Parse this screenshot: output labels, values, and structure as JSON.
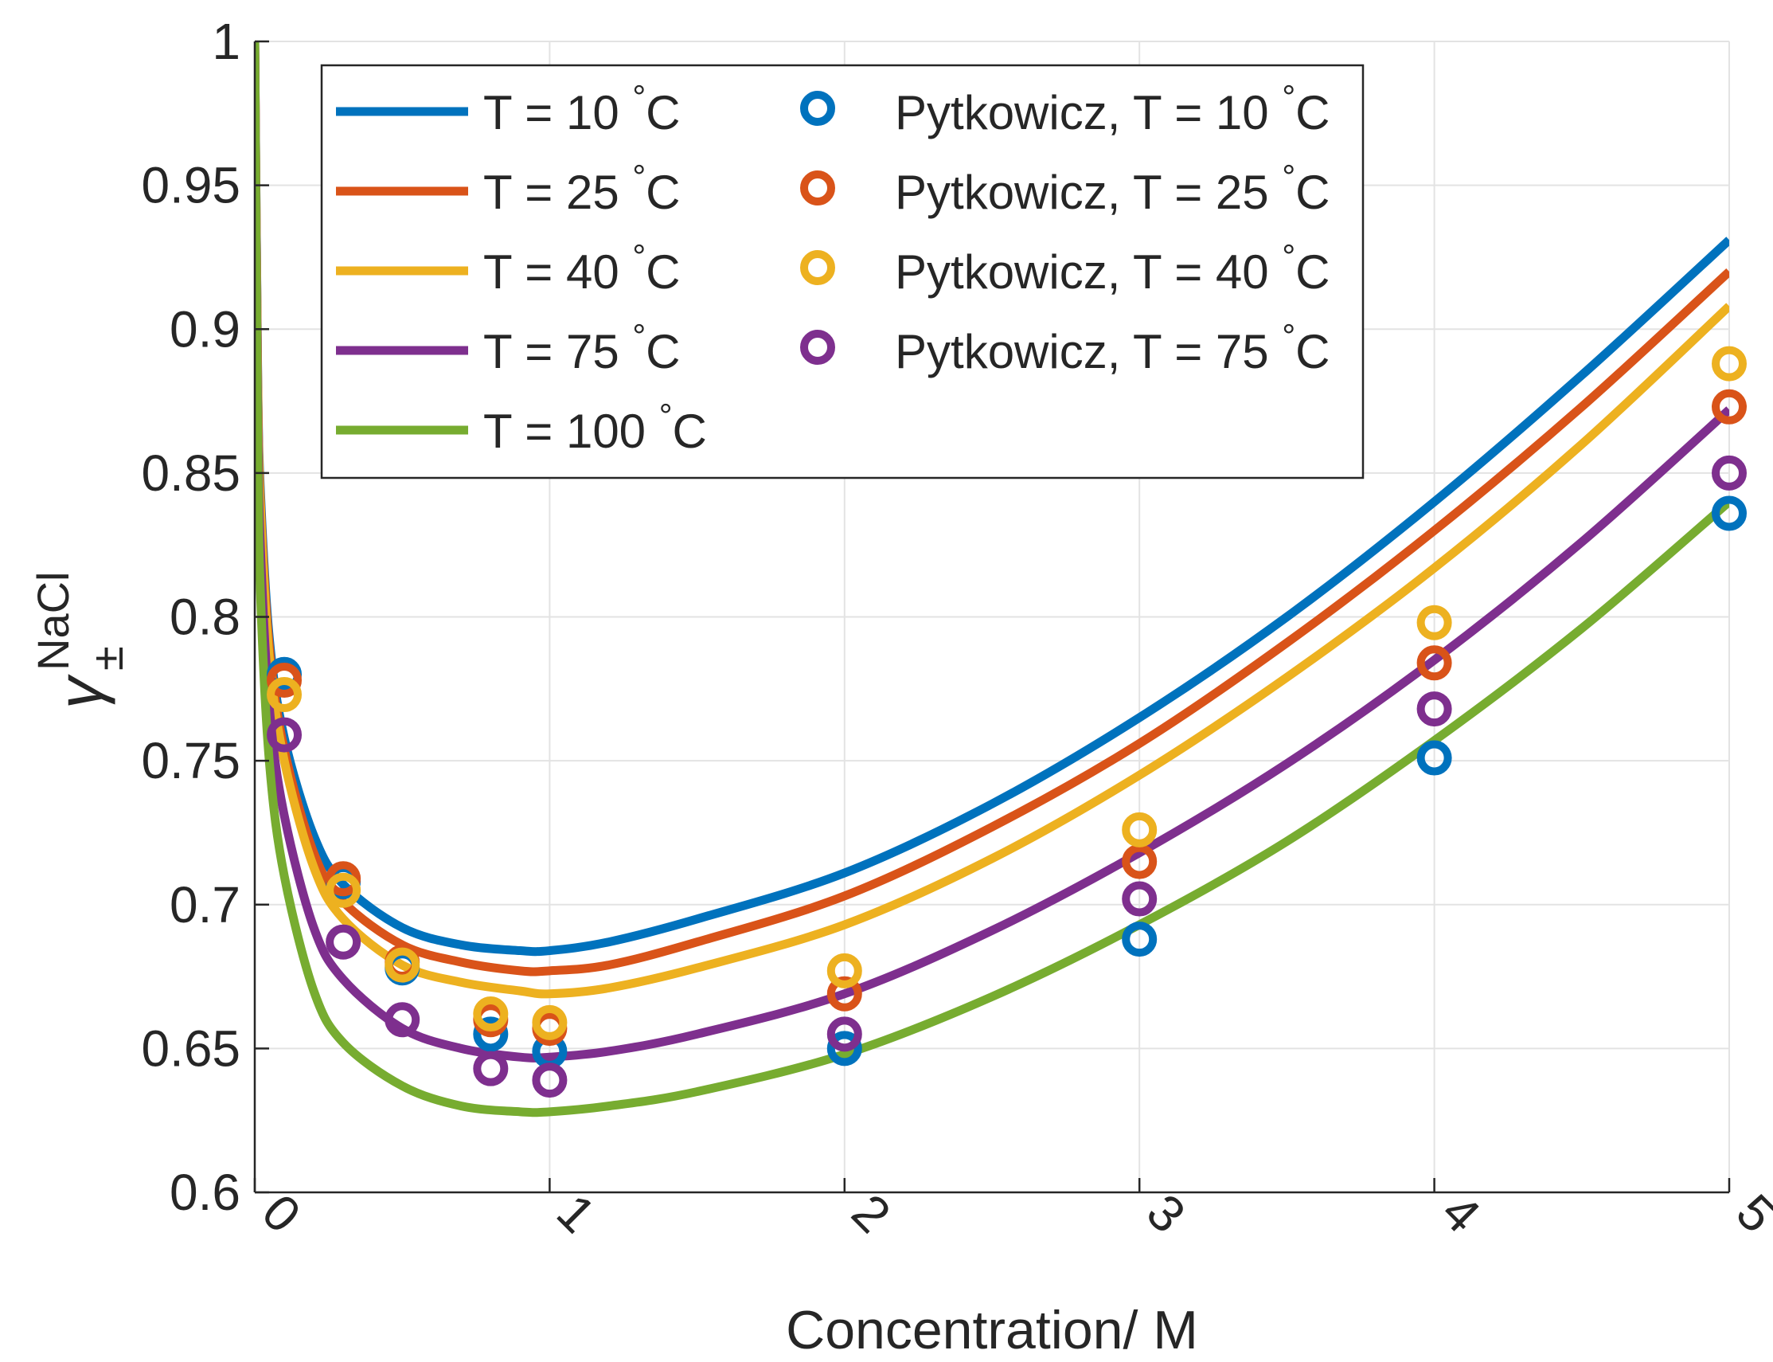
{
  "chart_data": {
    "type": "line",
    "title": "",
    "xlabel": "Concentration/ M",
    "ylabel": {
      "base": "γ",
      "sub": "±",
      "sup": "NaCl"
    },
    "xlim": [
      0,
      5
    ],
    "ylim": [
      0.6,
      1.0
    ],
    "xticks": [
      0,
      1,
      2,
      3,
      4,
      5
    ],
    "xtick_labels": [
      "0",
      "1",
      "2",
      "3",
      "4",
      "5"
    ],
    "yticks": [
      0.6,
      0.65,
      0.7,
      0.75,
      0.8,
      0.85,
      0.9,
      0.95,
      1.0
    ],
    "ytick_labels": [
      "0.6",
      "0.65",
      "0.7",
      "0.75",
      "0.8",
      "0.85",
      "0.9",
      "0.95",
      "1"
    ],
    "grid": true,
    "legend": {
      "location": "top-left",
      "columns": 2
    },
    "series": [
      {
        "name": "T = 10 °C",
        "label_main": "T = 10 ",
        "label_deg": "°",
        "label_unit": "C",
        "kind": "line",
        "color": "#0072BD",
        "x": [
          0,
          0.01,
          0.02,
          0.05,
          0.1,
          0.2,
          0.3,
          0.5,
          0.7,
          0.9,
          1.0,
          1.2,
          1.5,
          2.0,
          2.5,
          3.0,
          3.5,
          4.0,
          4.5,
          5.0
        ],
        "y": [
          1.0,
          0.884,
          0.842,
          0.792,
          0.758,
          0.724,
          0.707,
          0.692,
          0.686,
          0.684,
          0.684,
          0.687,
          0.695,
          0.711,
          0.735,
          0.765,
          0.8,
          0.84,
          0.884,
          0.931
        ]
      },
      {
        "name": "T = 25 °C",
        "label_main": "T = 25 ",
        "label_deg": "°",
        "label_unit": "C",
        "kind": "line",
        "color": "#D95319",
        "x": [
          0,
          0.01,
          0.02,
          0.05,
          0.1,
          0.2,
          0.3,
          0.5,
          0.7,
          0.9,
          1.0,
          1.2,
          1.5,
          2.0,
          2.5,
          3.0,
          3.5,
          4.0,
          4.5,
          5.0
        ],
        "y": [
          1.0,
          0.882,
          0.839,
          0.789,
          0.754,
          0.718,
          0.701,
          0.686,
          0.68,
          0.677,
          0.677,
          0.679,
          0.687,
          0.703,
          0.727,
          0.756,
          0.791,
          0.83,
          0.873,
          0.92
        ]
      },
      {
        "name": "T = 40 °C",
        "label_main": "T = 40 ",
        "label_deg": "°",
        "label_unit": "C",
        "kind": "line",
        "color": "#EDB120",
        "x": [
          0,
          0.01,
          0.02,
          0.05,
          0.1,
          0.2,
          0.3,
          0.5,
          0.7,
          0.9,
          1.0,
          1.2,
          1.5,
          2.0,
          2.5,
          3.0,
          3.5,
          4.0,
          4.5,
          5.0
        ],
        "y": [
          1.0,
          0.88,
          0.836,
          0.785,
          0.75,
          0.713,
          0.695,
          0.679,
          0.673,
          0.67,
          0.669,
          0.671,
          0.678,
          0.693,
          0.716,
          0.745,
          0.779,
          0.817,
          0.86,
          0.908
        ]
      },
      {
        "name": "T = 75 °C",
        "label_main": "T = 75 ",
        "label_deg": "°",
        "label_unit": "C",
        "kind": "line",
        "color": "#7E2F8E",
        "x": [
          0,
          0.01,
          0.02,
          0.05,
          0.1,
          0.2,
          0.3,
          0.5,
          0.7,
          0.9,
          1.0,
          1.2,
          1.5,
          2.0,
          2.5,
          3.0,
          3.5,
          4.0,
          4.5,
          5.0
        ],
        "y": [
          1.0,
          0.87,
          0.822,
          0.768,
          0.731,
          0.692,
          0.674,
          0.657,
          0.65,
          0.647,
          0.647,
          0.649,
          0.655,
          0.669,
          0.691,
          0.718,
          0.749,
          0.785,
          0.826,
          0.872
        ]
      },
      {
        "name": "T = 100 °C",
        "label_main": "T = 100 ",
        "label_deg": "°",
        "label_unit": "C",
        "kind": "line",
        "color": "#77AC30",
        "x": [
          0,
          0.01,
          0.02,
          0.05,
          0.1,
          0.2,
          0.3,
          0.5,
          0.7,
          0.9,
          1.0,
          1.2,
          1.5,
          2.0,
          2.5,
          3.0,
          3.5,
          4.0,
          4.5,
          5.0
        ],
        "y": [
          1.0,
          0.858,
          0.806,
          0.749,
          0.71,
          0.67,
          0.652,
          0.637,
          0.63,
          0.628,
          0.628,
          0.63,
          0.635,
          0.648,
          0.668,
          0.693,
          0.722,
          0.757,
          0.796,
          0.84
        ]
      },
      {
        "name": "Pytkowicz, T = 10 °C",
        "label_main": "Pytkowicz, T = 10 ",
        "label_deg": "°",
        "label_unit": "C",
        "kind": "marker",
        "color": "#0072BD",
        "x": [
          0.1,
          0.3,
          0.5,
          0.8,
          1.0,
          2.0,
          3.0,
          4.0,
          5.0
        ],
        "y": [
          0.78,
          0.708,
          0.678,
          0.655,
          0.649,
          0.65,
          0.688,
          0.751,
          0.836
        ]
      },
      {
        "name": "Pytkowicz, T = 25 °C",
        "label_main": "Pytkowicz, T = 25 ",
        "label_deg": "°",
        "label_unit": "C",
        "kind": "marker",
        "color": "#D95319",
        "x": [
          0.1,
          0.3,
          0.5,
          0.8,
          1.0,
          2.0,
          3.0,
          4.0,
          5.0
        ],
        "y": [
          0.778,
          0.709,
          0.68,
          0.66,
          0.657,
          0.669,
          0.715,
          0.784,
          0.873
        ]
      },
      {
        "name": "Pytkowicz, T = 40 °C",
        "label_main": "Pytkowicz, T = 40 ",
        "label_deg": "°",
        "label_unit": "C",
        "kind": "marker",
        "color": "#EDB120",
        "x": [
          0.1,
          0.3,
          0.5,
          0.8,
          1.0,
          2.0,
          3.0,
          4.0,
          5.0
        ],
        "y": [
          0.773,
          0.705,
          0.679,
          0.662,
          0.659,
          0.677,
          0.726,
          0.798,
          0.888
        ]
      },
      {
        "name": "Pytkowicz, T = 75 °C",
        "label_main": "Pytkowicz, T = 75 ",
        "label_deg": "°",
        "label_unit": "C",
        "kind": "marker",
        "color": "#7E2F8E",
        "x": [
          0.1,
          0.3,
          0.5,
          0.8,
          1.0,
          2.0,
          3.0,
          4.0,
          5.0
        ],
        "y": [
          0.759,
          0.687,
          0.66,
          0.643,
          0.639,
          0.655,
          0.702,
          0.768,
          0.85
        ]
      }
    ]
  }
}
